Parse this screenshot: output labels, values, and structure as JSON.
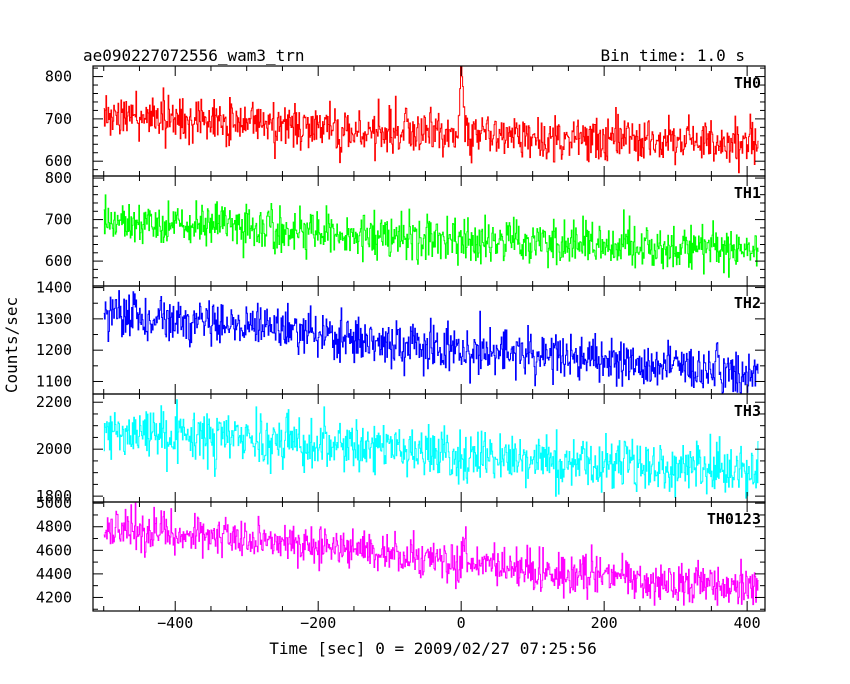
{
  "header": {
    "title": "ae090227072556_wam3_trn",
    "bin_time": "Bin time: 1.0 s"
  },
  "chart_data": {
    "type": "line",
    "title": "ae090227072556_wam3_trn",
    "subtitle": "Bin time: 1.0 s",
    "xlabel": "Time [sec] 0 = 2009/02/27 07:25:56",
    "ylabel": "Counts/sec",
    "xlim": [
      -515,
      425
    ],
    "x_ticks": [
      -400,
      -200,
      0,
      200,
      400
    ],
    "x_tick_labels": [
      "−400",
      "−200",
      "0",
      "200",
      "400"
    ],
    "x_start": -500,
    "x_end": 415,
    "bin_size": 1.0,
    "grid": false,
    "panels": [
      {
        "name": "TH0",
        "color": "#ff0000",
        "ylim": [
          565,
          825
        ],
        "y_ticks": [
          600,
          700,
          800
        ],
        "y_tick_labels": [
          "600",
          "700",
          "800"
        ],
        "trend": {
          "x": [
            -500,
            -300,
            -150,
            0,
            150,
            415
          ],
          "y": [
            705,
            695,
            670,
            665,
            655,
            640
          ]
        },
        "noise_sd": 26,
        "events": [
          {
            "x": 0,
            "peak": 820
          }
        ]
      },
      {
        "name": "TH1",
        "color": "#00ff00",
        "ylim": [
          540,
          805
        ],
        "y_ticks": [
          600,
          700,
          800
        ],
        "y_tick_labels": [
          "600",
          "700",
          "800"
        ],
        "trend": {
          "x": [
            -500,
            -300,
            -100,
            100,
            415
          ],
          "y": [
            695,
            680,
            660,
            645,
            625
          ]
        },
        "noise_sd": 26
      },
      {
        "name": "TH2",
        "color": "#0000ff",
        "ylim": [
          1060,
          1405
        ],
        "y_ticks": [
          1100,
          1200,
          1300,
          1400
        ],
        "y_tick_labels": [
          "1100",
          "1200",
          "1300",
          "1400"
        ],
        "trend": {
          "x": [
            -500,
            -300,
            -100,
            100,
            200,
            415
          ],
          "y": [
            1320,
            1280,
            1220,
            1185,
            1160,
            1130
          ]
        },
        "noise_sd": 38
      },
      {
        "name": "TH3",
        "color": "#00ffff",
        "ylim": [
          1775,
          2235
        ],
        "y_ticks": [
          1800,
          2000,
          2200
        ],
        "y_tick_labels": [
          "1800",
          "2000",
          "2200"
        ],
        "trend": {
          "x": [
            -500,
            -300,
            -100,
            100,
            415
          ],
          "y": [
            2080,
            2040,
            2000,
            1960,
            1900
          ]
        },
        "noise_sd": 55
      },
      {
        "name": "TH0123",
        "color": "#ff00ff",
        "ylim": [
          4085,
          5010
        ],
        "y_ticks": [
          4200,
          4400,
          4600,
          4800,
          5000
        ],
        "y_tick_labels": [
          "4200",
          "4400",
          "4600",
          "4800",
          "5000"
        ],
        "trend": {
          "x": [
            -500,
            -300,
            -100,
            0,
            100,
            415
          ],
          "y": [
            4800,
            4700,
            4560,
            4480,
            4420,
            4280
          ]
        },
        "noise_sd": 85,
        "events": [
          {
            "x": 5,
            "peak": 4750
          }
        ]
      }
    ]
  }
}
